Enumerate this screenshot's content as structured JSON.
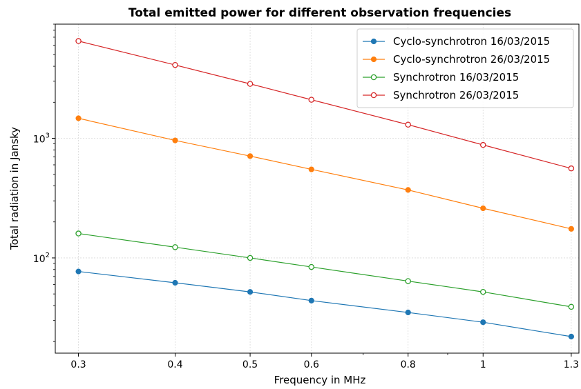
{
  "chart_data": {
    "type": "line",
    "title": "Total emitted power for different observation frequencies",
    "xlabel": "Frequency in MHz",
    "ylabel": "Total radiation in Jansky",
    "xscale": "log",
    "yscale": "log",
    "xlim": [
      0.28,
      1.33
    ],
    "ylim": [
      16,
      9000
    ],
    "grid": true,
    "legend_position": "top-right",
    "x": [
      0.3,
      0.4,
      0.5,
      0.6,
      0.8,
      1.0,
      1.3
    ],
    "x_tick_labels": [
      "0.3",
      "0.4",
      "0.5",
      "0.6",
      "0.8",
      "1",
      "1.3"
    ],
    "y_ticks": [
      {
        "value": 100,
        "base": "10",
        "exp": "2"
      },
      {
        "value": 1000,
        "base": "10",
        "exp": "3"
      }
    ],
    "series": [
      {
        "name": "Cyclo-synchrotron 16/03/2015",
        "color": "#1f77b4",
        "marker": "filled",
        "values": [
          77,
          62,
          52,
          44,
          35,
          29,
          22
        ]
      },
      {
        "name": "Cyclo-synchrotron 26/03/2015",
        "color": "#ff7f0e",
        "marker": "filled",
        "values": [
          1470,
          960,
          710,
          550,
          370,
          260,
          175
        ]
      },
      {
        "name": "Synchrotron 16/03/2015",
        "color": "#2ca02c",
        "marker": "hollow",
        "values": [
          160,
          123,
          100,
          84,
          64,
          52,
          39
        ]
      },
      {
        "name": "Synchrotron 26/03/2015",
        "color": "#d62728",
        "marker": "hollow",
        "values": [
          6500,
          4100,
          2850,
          2100,
          1300,
          880,
          560
        ]
      }
    ]
  }
}
